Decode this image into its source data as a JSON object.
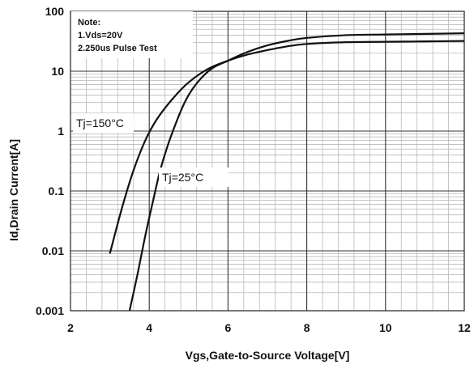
{
  "chart_data": {
    "type": "line",
    "title": "",
    "xlabel": "Vgs,Gate-to-Source  Voltage[V]",
    "ylabel": "Id,Drain Current[A]",
    "xlim": [
      2,
      12
    ],
    "ylim": [
      0.001,
      100
    ],
    "yscale": "log",
    "grid": true,
    "x_ticks": [
      "2",
      "4",
      "6",
      "8",
      "10",
      "12"
    ],
    "y_ticks": [
      "0.001",
      "0.01",
      "0.1",
      "1",
      "10",
      "100"
    ],
    "note": {
      "heading": "Note:",
      "lines": [
        "1.Vds=20V",
        "2.250us Pulse Test"
      ]
    },
    "series": [
      {
        "name": "Tj=150°C",
        "x": [
          3.0,
          3.3,
          3.6,
          3.9,
          4.2,
          4.6,
          5.0,
          5.5,
          6.0,
          6.5,
          7.0,
          7.5,
          8.0,
          9.0,
          10.0,
          11.0,
          12.0
        ],
        "y": [
          0.009,
          0.05,
          0.22,
          0.7,
          1.6,
          3.5,
          6.5,
          11.0,
          15.0,
          19.0,
          22.5,
          26.0,
          28.5,
          30.5,
          31.0,
          31.5,
          32.0
        ]
      },
      {
        "name": "Tj=25°C",
        "x": [
          3.5,
          3.7,
          3.9,
          4.1,
          4.3,
          4.6,
          5.0,
          5.5,
          6.0,
          6.5,
          7.0,
          7.5,
          8.0,
          9.0,
          10.0,
          11.0,
          12.0
        ],
        "y": [
          0.001,
          0.004,
          0.018,
          0.07,
          0.25,
          1.0,
          4.0,
          10.0,
          15.0,
          21.0,
          27.0,
          32.0,
          36.0,
          40.0,
          41.0,
          42.0,
          43.0
        ]
      }
    ]
  }
}
